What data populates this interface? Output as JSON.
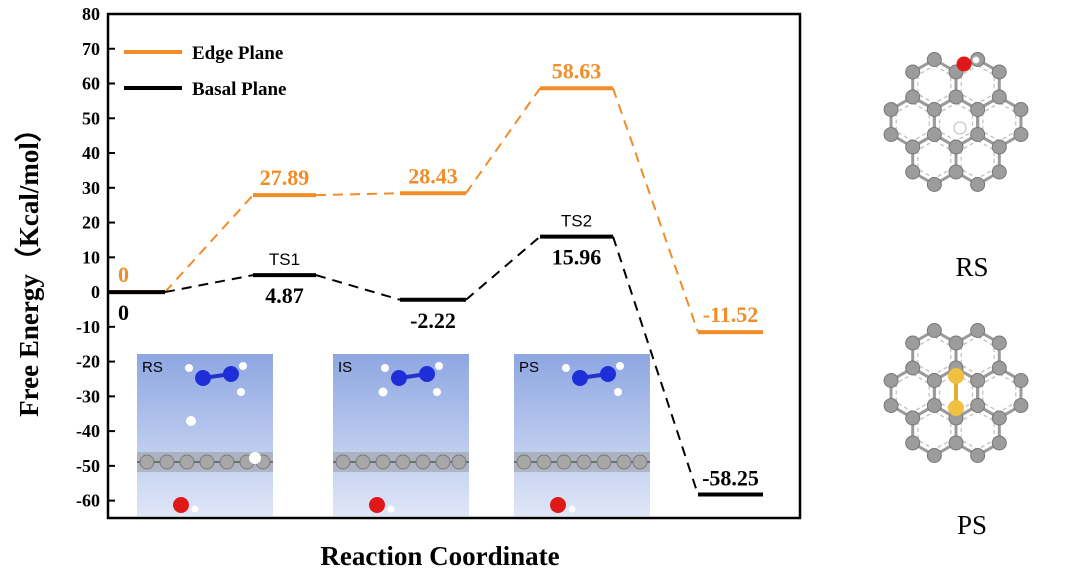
{
  "chart_data": {
    "type": "line",
    "title": "",
    "ylabel": "Free Energy（Kcal/mol）",
    "xlabel": "Reaction Coordinate",
    "ylim": [
      -65,
      80
    ],
    "yticks": [
      80,
      70,
      60,
      50,
      40,
      30,
      20,
      10,
      0,
      -10,
      -20,
      -30,
      -40,
      -50,
      -60
    ],
    "legend_position": "top-left",
    "series": [
      {
        "name": "Edge Plane",
        "color": "#f28c28",
        "values": [
          0,
          27.89,
          28.43,
          58.63,
          -11.52
        ],
        "labels": [
          "0",
          "27.89",
          "28.43",
          "58.63",
          "-11.52"
        ]
      },
      {
        "name": "Basal Plane",
        "color": "#000000",
        "values": [
          0,
          4.87,
          -2.22,
          15.96,
          -58.25
        ],
        "labels": [
          "0",
          "4.87",
          "-2.22",
          "15.96",
          "-58.25"
        ]
      }
    ],
    "state_labels": [
      "TS1",
      "TS2"
    ],
    "insets": [
      "RS",
      "IS",
      "PS"
    ],
    "side_structures": [
      "RS",
      "PS"
    ]
  }
}
